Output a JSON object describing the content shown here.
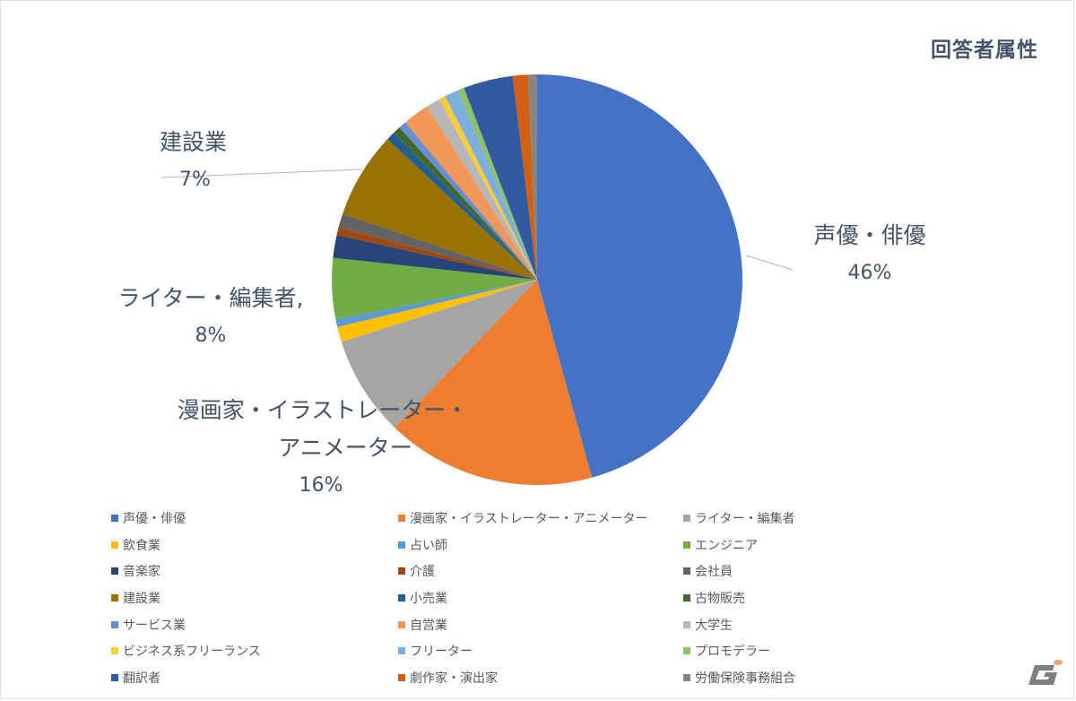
{
  "chart_data": {
    "type": "pie",
    "title": "回答者属性",
    "legend_position": "bottom",
    "categories": [
      "声優・俳優",
      "漫画家・イラストレーター・アニメーター",
      "ライター・編集者",
      "飲食業",
      "占い師",
      "エンジニア",
      "音楽家",
      "介護",
      "会社員",
      "建設業",
      "小売業",
      "古物販売",
      "サービス業",
      "自営業",
      "大学生",
      "ビジネス系フリーランス",
      "フリーター",
      "プロモデラー",
      "翻訳者",
      "劇作家・演出家",
      "労働保険事務組合"
    ],
    "values": [
      45.7,
      16.5,
      7.9,
      1.2,
      0.6,
      4.8,
      1.8,
      0.6,
      1.1,
      6.8,
      0.7,
      0.6,
      0.6,
      2.1,
      1.1,
      0.5,
      1.1,
      0.5,
      3.9,
      1.2,
      0.7
    ],
    "colors": [
      "#4472c4",
      "#ed7d31",
      "#a5a5a5",
      "#ffc000",
      "#5b9bd5",
      "#70ad47",
      "#264478",
      "#9e480e",
      "#636363",
      "#997300",
      "#255e91",
      "#43682b",
      "#698ed0",
      "#f1975a",
      "#b7b7b7",
      "#ffcd33",
      "#7cafdd",
      "#8cc168",
      "#335aa1",
      "#d26012",
      "#848484"
    ],
    "data_labels": [
      {
        "category": "声優・俳優",
        "text": "46%"
      },
      {
        "category": "漫画家・イラストレーター・アニメーター",
        "text": "16%"
      },
      {
        "category": "ライター・編集者",
        "text": "8%"
      },
      {
        "category": "建設業",
        "text": "7%"
      }
    ],
    "units": "%"
  },
  "labels": {
    "seiyu": {
      "line1": "声優・俳優",
      "pct": "46%"
    },
    "manga": {
      "line1": "漫画家・イラストレーター・",
      "line2": "アニメーター",
      "pct": "16%"
    },
    "writer": {
      "line1": "ライター・編集者,",
      "pct": "8%"
    },
    "kensetsu": {
      "line1": "建設業",
      "pct": "7%"
    }
  },
  "logo": {
    "name": "gamer-logo"
  }
}
